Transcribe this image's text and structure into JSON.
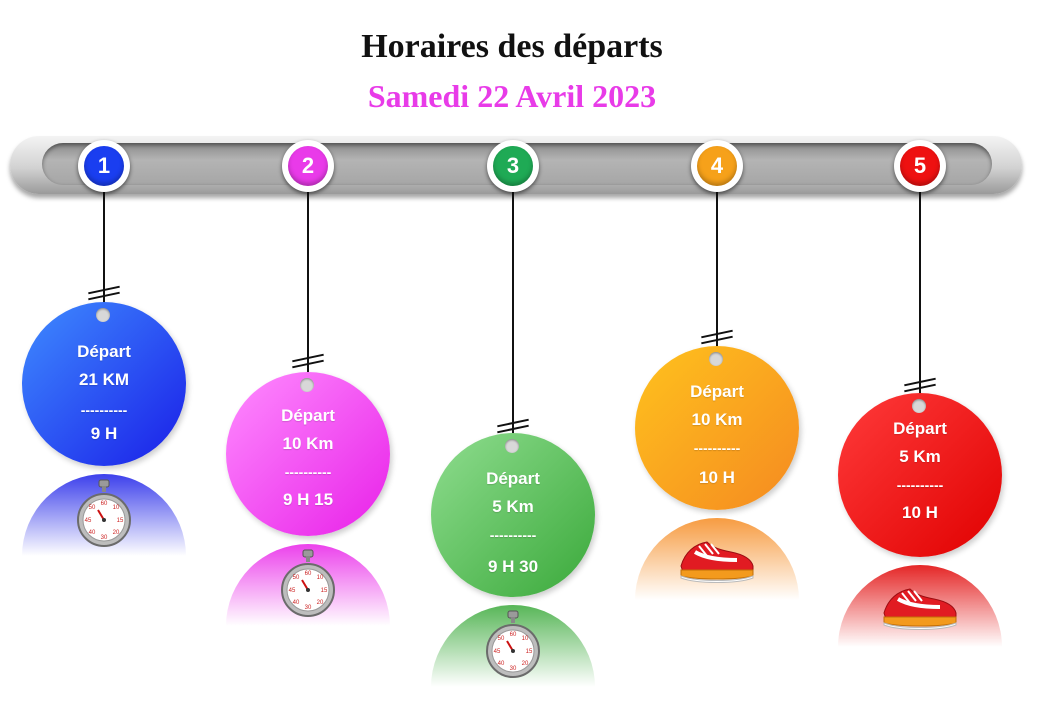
{
  "title": "Horaires des départs",
  "subtitle": "Samedi 22 Avril 2023",
  "markers": [
    {
      "number": "1",
      "color": "#1a3ef0"
    },
    {
      "number": "2",
      "color": "#e93ae9"
    },
    {
      "number": "3",
      "color": "#1faa55"
    },
    {
      "number": "4",
      "color": "#f6a11a"
    },
    {
      "number": "5",
      "color": "#ee1111"
    }
  ],
  "departures": [
    {
      "label": "Départ",
      "distance": "21 KM",
      "separator": "----------",
      "time": "9 H",
      "icon": "stopwatch-icon",
      "color_light": "#3f8cff",
      "color_dark": "#1a1ee8"
    },
    {
      "label": "Départ",
      "distance": "10 Km",
      "separator": "----------",
      "time": "9 H 15",
      "icon": "stopwatch-icon",
      "color_light": "#ff8cff",
      "color_dark": "#e820e8"
    },
    {
      "label": "Départ",
      "distance": "5 Km",
      "separator": "----------",
      "time": "9 H 30",
      "icon": "stopwatch-icon",
      "color_light": "#8fdd8f",
      "color_dark": "#3aa93a"
    },
    {
      "label": "Départ",
      "distance": "10 Km",
      "separator": "----------",
      "time": "10 H",
      "icon": "sneaker-icon",
      "color_light": "#ffc21e",
      "color_dark": "#f58a20"
    },
    {
      "label": "Départ",
      "distance": "5 Km",
      "separator": "----------",
      "time": "10 H",
      "icon": "sneaker-icon",
      "color_light": "#ff3b3b",
      "color_dark": "#e00000"
    }
  ]
}
